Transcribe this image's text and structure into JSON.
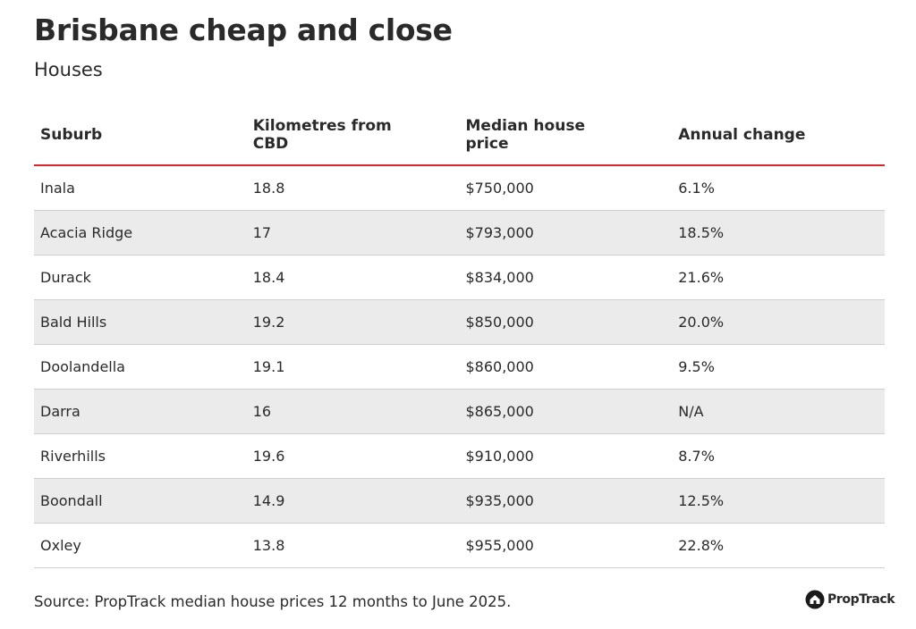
{
  "header": {
    "title": "Brisbane cheap and close",
    "subtitle": "Houses"
  },
  "table": {
    "columns": [
      "Suburb",
      "Kilometres from CBD",
      "Median house price",
      "Annual change"
    ],
    "rows": [
      [
        "Inala",
        "18.8",
        "$750,000",
        "6.1%"
      ],
      [
        "Acacia Ridge",
        "17",
        "$793,000",
        "18.5%"
      ],
      [
        "Durack",
        "18.4",
        "$834,000",
        "21.6%"
      ],
      [
        "Bald Hills",
        "19.2",
        "$850,000",
        "20.0%"
      ],
      [
        "Doolandella",
        "19.1",
        "$860,000",
        "9.5%"
      ],
      [
        "Darra",
        "16",
        "$865,000",
        "N/A"
      ],
      [
        "Riverhills",
        "19.6",
        "$910,000",
        "8.7%"
      ],
      [
        "Boondall",
        "14.9",
        "$935,000",
        "12.5%"
      ],
      [
        "Oxley",
        "13.8",
        "$955,000",
        "22.8%"
      ]
    ]
  },
  "footer": {
    "source": "Source: PropTrack median house prices 12 months to June 2025.",
    "logo": "PropTrack"
  }
}
